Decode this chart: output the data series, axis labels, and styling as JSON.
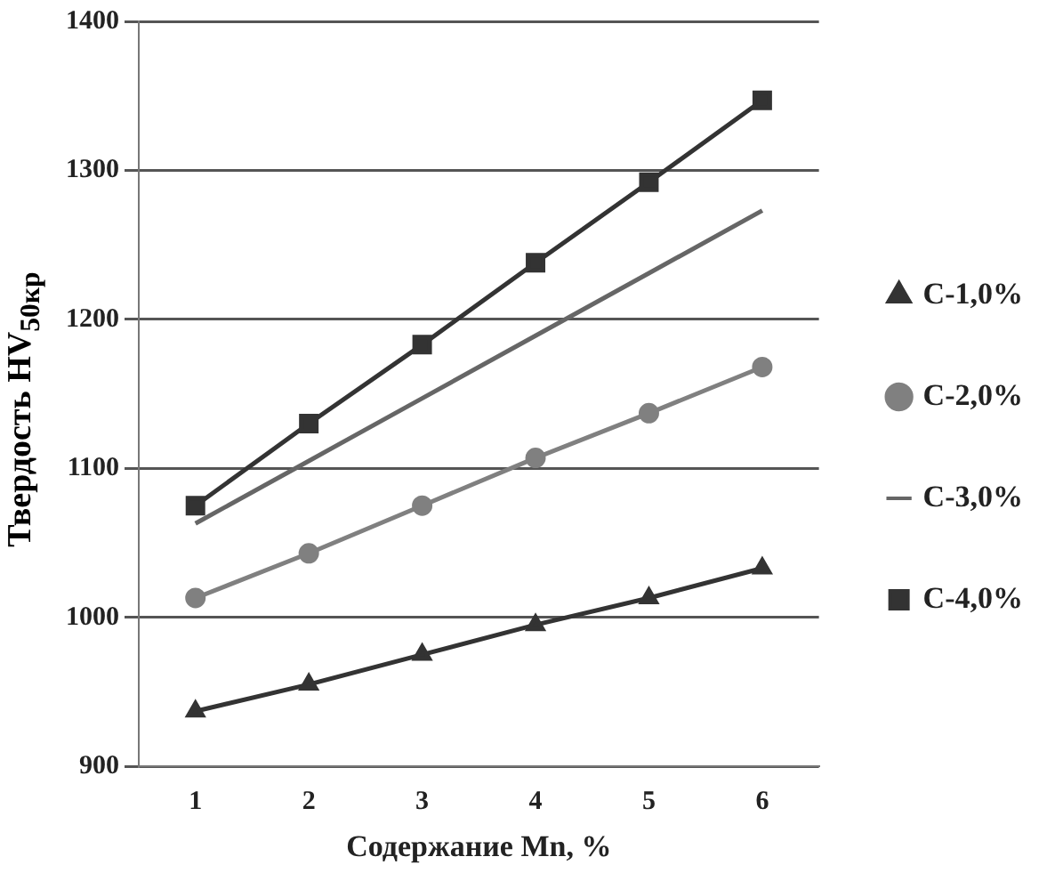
{
  "chart_data": {
    "type": "line",
    "xlabel": "Содержание Mn, %",
    "ylabel": "Твердость  HV$_{50кр}$",
    "x": [
      1,
      2,
      3,
      4,
      5,
      6
    ],
    "xlim": [
      0.5,
      6.5
    ],
    "xticks": [
      1,
      2,
      3,
      4,
      5,
      6
    ],
    "ylim": [
      900,
      1400
    ],
    "yticks": [
      900,
      1000,
      1100,
      1200,
      1300,
      1400
    ],
    "grid": "y",
    "legend": "right",
    "line_style": "solid",
    "series": [
      {
        "name": "C-1,0%",
        "color": "#333333",
        "marker": "triangle",
        "values": [
          937,
          955,
          975,
          995,
          1013,
          1033
        ]
      },
      {
        "name": "C-2,0%",
        "color": "#808080",
        "marker": "circle",
        "values": [
          1013,
          1043,
          1075,
          1107,
          1137,
          1168
        ]
      },
      {
        "name": "C-3,0%",
        "color": "#666666",
        "marker": "none",
        "values": [
          1063,
          1105,
          1147,
          1189,
          1231,
          1273
        ]
      },
      {
        "name": "C-4,0%",
        "color": "#333333",
        "marker": "square",
        "values": [
          1075,
          1130,
          1183,
          1238,
          1292,
          1347
        ]
      }
    ]
  }
}
